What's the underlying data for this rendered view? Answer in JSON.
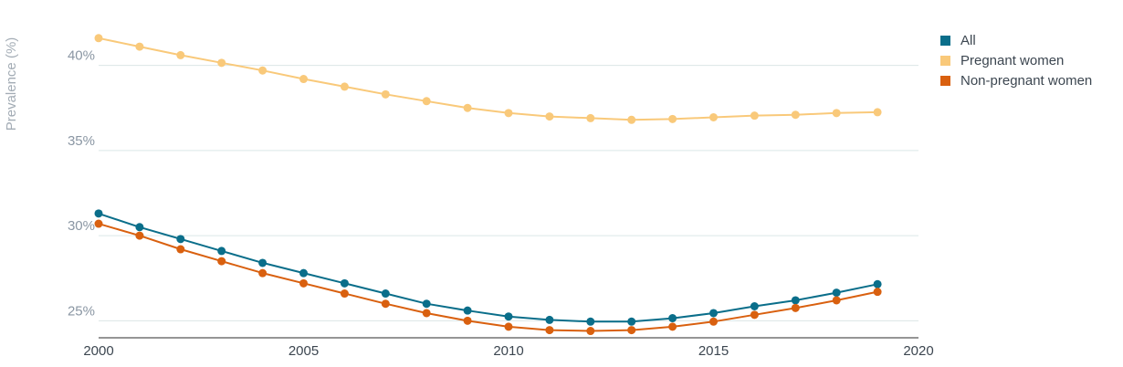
{
  "chart_data": {
    "type": "line",
    "ylabel": "Prevalence (%)",
    "xlabel": "",
    "xlim": [
      2000,
      2020
    ],
    "ylim": [
      24,
      42.5
    ],
    "x_ticks": [
      2000,
      2005,
      2010,
      2015,
      2020
    ],
    "x_tick_labels": [
      "2000",
      "2005",
      "2010",
      "2015",
      "2020"
    ],
    "y_ticks": [
      25,
      30,
      35,
      40
    ],
    "y_tick_labels": [
      "25%",
      "30%",
      "35%",
      "40%"
    ],
    "grid": true,
    "legend_position": "top-right",
    "x": [
      2000,
      2001,
      2002,
      2003,
      2004,
      2005,
      2006,
      2007,
      2008,
      2009,
      2010,
      2011,
      2012,
      2013,
      2014,
      2015,
      2016,
      2017,
      2018,
      2019
    ],
    "series": [
      {
        "name": "All",
        "color": "#0a6e8a",
        "values": [
          31.3,
          30.5,
          29.8,
          29.1,
          28.4,
          27.8,
          27.2,
          26.6,
          26.0,
          25.6,
          25.25,
          25.05,
          24.95,
          24.95,
          25.15,
          25.45,
          25.85,
          26.2,
          26.65,
          27.15
        ]
      },
      {
        "name": "Pregnant women",
        "color": "#f9c97a",
        "values": [
          41.6,
          41.1,
          40.6,
          40.15,
          39.7,
          39.2,
          38.75,
          38.3,
          37.9,
          37.5,
          37.2,
          37.0,
          36.9,
          36.8,
          36.85,
          36.95,
          37.05,
          37.1,
          37.2,
          37.25
        ]
      },
      {
        "name": "Non-pregnant women",
        "color": "#d9600f",
        "values": [
          30.7,
          30.0,
          29.2,
          28.5,
          27.8,
          27.2,
          26.6,
          26.0,
          25.45,
          25.0,
          24.65,
          24.45,
          24.4,
          24.45,
          24.65,
          24.95,
          25.35,
          25.75,
          26.2,
          26.7
        ]
      }
    ]
  }
}
